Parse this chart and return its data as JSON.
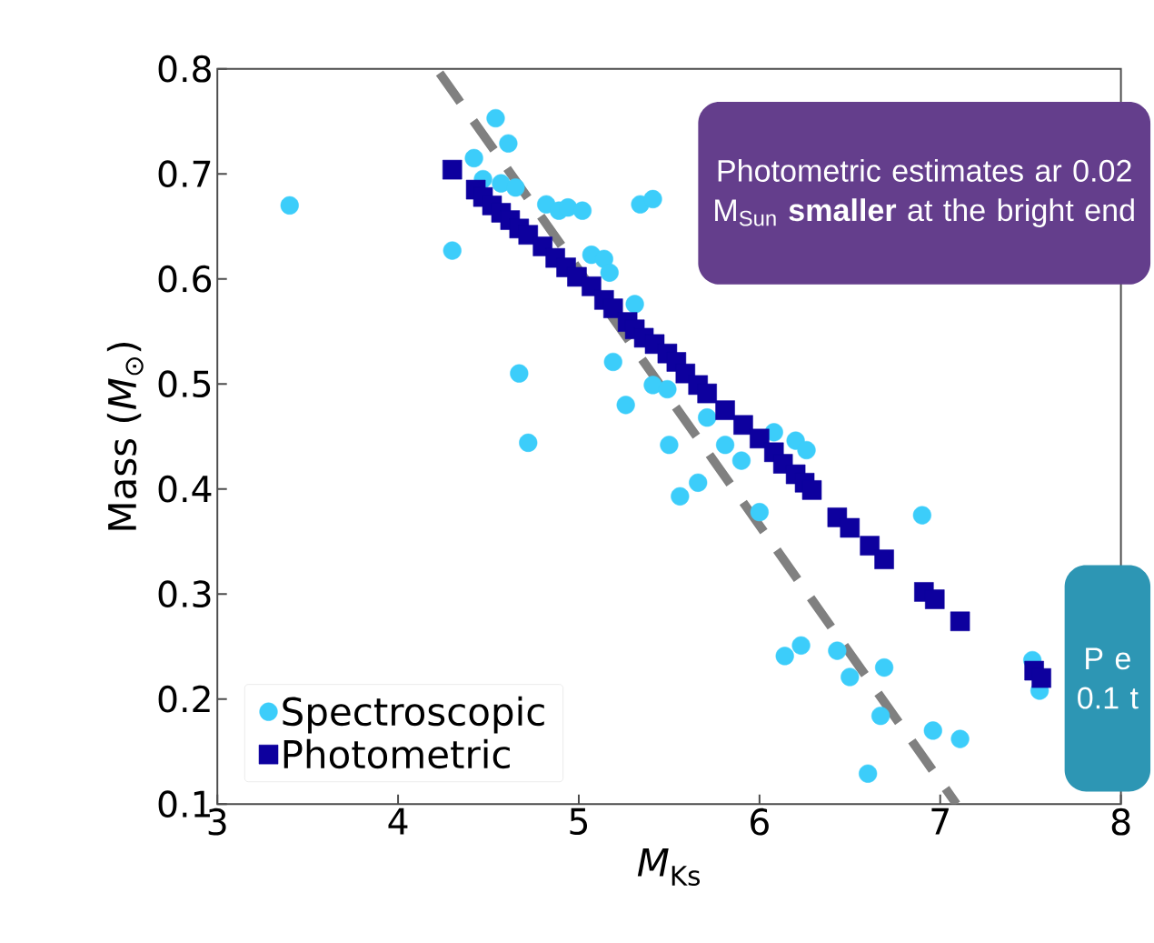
{
  "chart_data": {
    "type": "scatter",
    "xlabel": "*M*$_{Ks}$",
    "ylabel": "Mass (*M*$_{⊙}$)",
    "xlim": [
      3,
      8
    ],
    "ylim": [
      0.1,
      0.8
    ],
    "xticks": [
      3,
      4,
      5,
      6,
      7,
      8
    ],
    "yticks": [
      0.1,
      0.2,
      0.3,
      0.4,
      0.5,
      0.6,
      0.7,
      0.8
    ],
    "legend": "bottom left",
    "series": [
      {
        "name": "Spectroscopic",
        "color": "#3ccdfa",
        "marker": "circle",
        "x": [
          3.4,
          4.3,
          4.42,
          4.54,
          4.61,
          4.47,
          4.57,
          4.65,
          4.82,
          4.89,
          4.94,
          5.02,
          5.34,
          5.41,
          5.07,
          5.14,
          5.17,
          5.31,
          4.67,
          4.72,
          5.19,
          5.26,
          5.41,
          5.49,
          5.5,
          5.56,
          5.66,
          5.71,
          5.81,
          5.9,
          6.0,
          6.08,
          6.2,
          6.26,
          6.9,
          6.14,
          6.23,
          6.43,
          6.5,
          6.69,
          6.67,
          6.96,
          7.11,
          6.6,
          7.51,
          7.55
        ],
        "values": [
          0.67,
          0.627,
          0.715,
          0.753,
          0.729,
          0.695,
          0.691,
          0.687,
          0.671,
          0.665,
          0.668,
          0.665,
          0.671,
          0.676,
          0.623,
          0.619,
          0.606,
          0.576,
          0.51,
          0.444,
          0.521,
          0.48,
          0.499,
          0.495,
          0.442,
          0.393,
          0.406,
          0.468,
          0.442,
          0.427,
          0.378,
          0.454,
          0.446,
          0.437,
          0.375,
          0.241,
          0.251,
          0.246,
          0.221,
          0.23,
          0.184,
          0.17,
          0.162,
          0.129,
          0.237,
          0.208
        ]
      },
      {
        "name": "Photometric",
        "color": "#0d009e",
        "marker": "square",
        "x": [
          4.3,
          4.43,
          4.47,
          4.52,
          4.57,
          4.62,
          4.67,
          4.72,
          4.8,
          4.87,
          4.93,
          4.99,
          5.07,
          5.14,
          5.19,
          5.27,
          5.31,
          5.36,
          5.42,
          5.49,
          5.54,
          5.59,
          5.66,
          5.71,
          5.81,
          5.91,
          6.0,
          6.08,
          6.13,
          6.2,
          6.25,
          6.29,
          6.43,
          6.5,
          6.61,
          6.69,
          6.91,
          6.97,
          7.11,
          7.52,
          7.56
        ],
        "values": [
          0.704,
          0.685,
          0.678,
          0.67,
          0.663,
          0.656,
          0.648,
          0.642,
          0.631,
          0.62,
          0.611,
          0.602,
          0.593,
          0.58,
          0.572,
          0.559,
          0.552,
          0.544,
          0.538,
          0.529,
          0.521,
          0.51,
          0.499,
          0.491,
          0.475,
          0.461,
          0.448,
          0.435,
          0.424,
          0.414,
          0.406,
          0.399,
          0.373,
          0.363,
          0.346,
          0.333,
          0.302,
          0.295,
          0.274,
          0.227,
          0.22
        ]
      },
      {
        "type": "line",
        "color": "#808080",
        "line_style": "dashed",
        "x": [
          4.23,
          7.09
        ],
        "values": [
          0.796,
          0.1
        ]
      }
    ],
    "annotations": [
      "Photometric estimates ar 0.02 M$_{Sun}$ **smaller** at the bright end",
      "P e 0.1 t"
    ]
  }
}
